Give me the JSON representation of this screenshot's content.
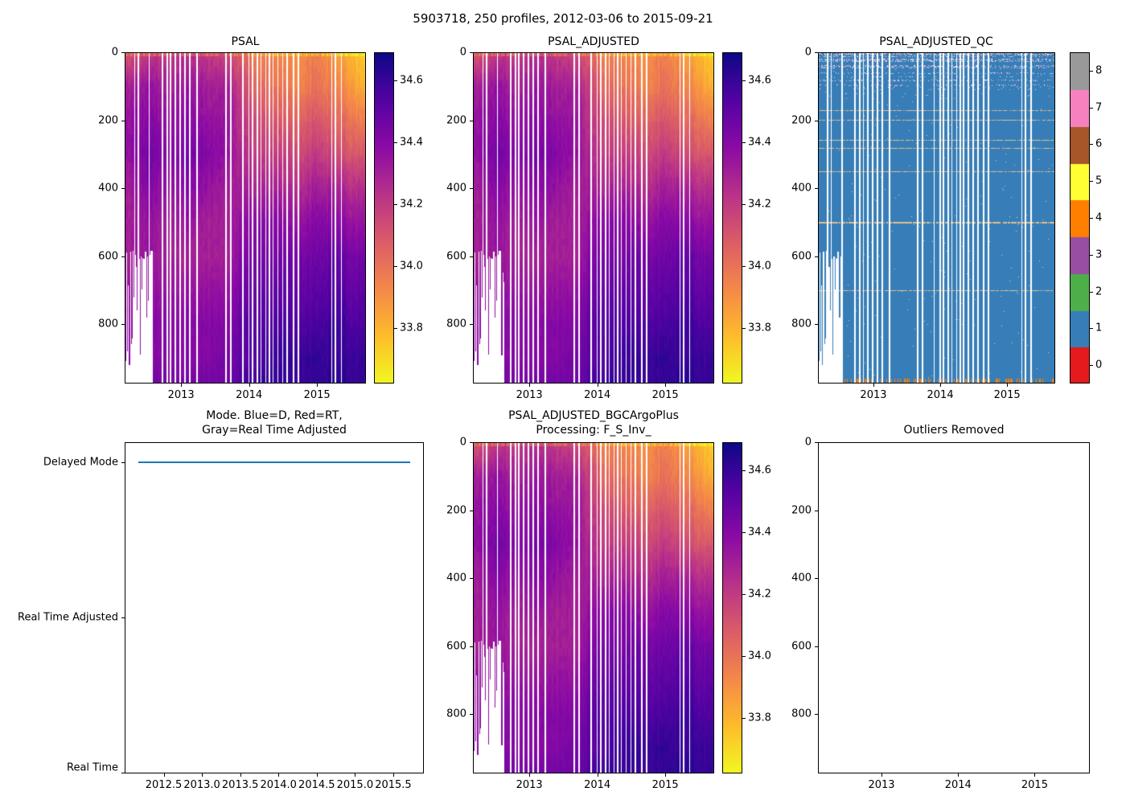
{
  "figure": {
    "title": "5903718, 250 profiles, 2012-03-06 to 2015-09-21"
  },
  "palette": {
    "line_blue": "#1f77b4",
    "qc_background_blue": "#377eb8",
    "qc_colorbar_colors": [
      "#e41a1c",
      "#377eb8",
      "#4daf4a",
      "#984ea3",
      "#ff7f00",
      "#ffff33",
      "#a65628",
      "#f781bf",
      "#999999"
    ],
    "plasma_stops": [
      [
        13,
        8,
        135
      ],
      [
        84,
        2,
        163
      ],
      [
        139,
        10,
        165
      ],
      [
        185,
        50,
        137
      ],
      [
        219,
        92,
        104
      ],
      [
        244,
        136,
        73
      ],
      [
        254,
        188,
        43
      ],
      [
        240,
        249,
        33
      ]
    ]
  },
  "grids": {
    "salinity": {
      "times": [
        2012.2,
        2012.5,
        2012.8,
        2013.1,
        2013.4,
        2013.7,
        2013.9,
        2014.1,
        2014.4,
        2014.7,
        2015.0,
        2015.3,
        2015.5,
        2015.72
      ],
      "depths": [
        0,
        100,
        200,
        300,
        400,
        500,
        600,
        700,
        800,
        900,
        975
      ],
      "values": [
        [
          34.1,
          34.2,
          34.2,
          34.25,
          34.2,
          34.15,
          34.05,
          33.95,
          33.95,
          33.9,
          33.95,
          33.88,
          33.8,
          33.72
        ],
        [
          34.3,
          34.35,
          34.3,
          34.35,
          34.3,
          34.3,
          34.15,
          34.05,
          34.0,
          33.95,
          34.0,
          33.95,
          33.88,
          33.8
        ],
        [
          34.35,
          34.4,
          34.35,
          34.4,
          34.35,
          34.35,
          34.2,
          34.15,
          34.1,
          34.05,
          34.1,
          34.05,
          34.0,
          33.95
        ],
        [
          34.35,
          34.45,
          34.4,
          34.45,
          34.4,
          34.35,
          34.25,
          34.2,
          34.2,
          34.15,
          34.2,
          34.15,
          34.1,
          34.1
        ],
        [
          34.3,
          34.4,
          34.35,
          34.4,
          34.35,
          34.3,
          34.3,
          34.3,
          34.3,
          34.25,
          34.3,
          34.3,
          34.25,
          34.25
        ],
        [
          34.3,
          34.35,
          34.3,
          34.35,
          34.3,
          34.3,
          34.35,
          34.4,
          34.4,
          34.35,
          34.4,
          34.4,
          34.35,
          34.35
        ],
        [
          34.3,
          34.35,
          34.3,
          34.3,
          34.3,
          34.3,
          34.4,
          34.45,
          34.45,
          34.45,
          34.45,
          34.5,
          34.45,
          34.45
        ],
        [
          34.35,
          34.35,
          34.35,
          34.35,
          34.35,
          34.35,
          34.45,
          34.5,
          34.5,
          34.5,
          34.5,
          34.55,
          34.5,
          34.5
        ],
        [
          34.35,
          34.4,
          34.4,
          34.4,
          34.4,
          34.4,
          34.5,
          34.55,
          34.55,
          34.55,
          34.55,
          34.6,
          34.55,
          34.55
        ],
        [
          34.4,
          34.4,
          34.4,
          34.4,
          34.4,
          34.45,
          34.5,
          34.55,
          34.6,
          34.6,
          34.6,
          34.6,
          34.6,
          34.6
        ],
        [
          34.4,
          34.45,
          34.45,
          34.45,
          34.45,
          34.45,
          34.55,
          34.6,
          34.6,
          34.6,
          34.6,
          34.65,
          34.6,
          34.6
        ]
      ]
    }
  },
  "missing_profile_stripes": [
    0.04,
    0.055,
    0.1,
    0.155,
    0.175,
    0.19,
    0.21,
    0.23,
    0.25,
    0.27,
    0.3,
    0.42,
    0.44,
    0.49,
    0.515,
    0.53,
    0.55,
    0.565,
    0.585,
    0.6,
    0.615,
    0.635,
    0.655,
    0.675,
    0.7,
    0.72,
    0.86,
    0.875,
    0.9
  ],
  "chart_data": [
    {
      "id": "psal",
      "type": "heatmap",
      "title": "PSAL",
      "xlabel": "",
      "ylabel": "",
      "x_ticks": [
        "2013",
        "2014",
        "2015"
      ],
      "y_ticks": [
        "0",
        "200",
        "400",
        "600",
        "800"
      ],
      "xlim": [
        2012.17,
        2015.72
      ],
      "ylim": [
        0,
        975
      ],
      "grid_ref": "salinity",
      "colorbar": {
        "colormap": "plasma_r",
        "vmin": 33.62,
        "vmax": 34.69,
        "ticks": [
          "34.6",
          "34.4",
          "34.2",
          "34.0",
          "33.8"
        ]
      }
    },
    {
      "id": "psal_adjusted",
      "type": "heatmap",
      "title": "PSAL_ADJUSTED",
      "xlabel": "",
      "ylabel": "",
      "x_ticks": [
        "2013",
        "2014",
        "2015"
      ],
      "y_ticks": [
        "0",
        "200",
        "400",
        "600",
        "800"
      ],
      "xlim": [
        2012.17,
        2015.72
      ],
      "ylim": [
        0,
        975
      ],
      "grid_ref": "salinity",
      "colorbar": {
        "colormap": "plasma_r",
        "vmin": 33.62,
        "vmax": 34.69,
        "ticks": [
          "34.6",
          "34.4",
          "34.2",
          "34.0",
          "33.8"
        ]
      }
    },
    {
      "id": "psal_adjusted_qc",
      "type": "heatmap",
      "title": "PSAL_ADJUSTED_QC",
      "xlabel": "",
      "ylabel": "",
      "x_ticks": [
        "2013",
        "2014",
        "2015"
      ],
      "y_ticks": [
        "0",
        "200",
        "400",
        "600",
        "800"
      ],
      "xlim": [
        2012.17,
        2015.72
      ],
      "ylim": [
        0,
        975
      ],
      "background_value": 1,
      "bottom_marks_value": 4,
      "surface_speckles": true,
      "colorbar": {
        "discrete": true,
        "ticks": [
          "0",
          "1",
          "2",
          "3",
          "4",
          "5",
          "6",
          "7",
          "8"
        ]
      }
    },
    {
      "id": "mode",
      "type": "line",
      "title_line1": "Mode. Blue=D, Red=RT,",
      "title_line2": "Gray=Real Time Adjusted",
      "y_categories": [
        "Delayed Mode",
        "Real Time Adjusted",
        "Real Time"
      ],
      "x_ticks": [
        "2012.5",
        "2013.0",
        "2013.5",
        "2014.0",
        "2014.5",
        "2015.0",
        "2015.5"
      ],
      "xlim": [
        2011.99,
        2015.9
      ],
      "series": [
        {
          "name": "mode",
          "color": "#1f77b4",
          "value": "Delayed Mode",
          "x_start": 2012.17,
          "x_end": 2015.72
        }
      ]
    },
    {
      "id": "psal_adjusted_bgc",
      "type": "heatmap",
      "title_line1": "PSAL_ADJUSTED_BGCArgoPlus",
      "title_line2": "Processing: F_S_Inv_",
      "xlabel": "",
      "ylabel": "",
      "x_ticks": [
        "2013",
        "2014",
        "2015"
      ],
      "y_ticks": [
        "0",
        "200",
        "400",
        "600",
        "800"
      ],
      "xlim": [
        2012.17,
        2015.72
      ],
      "ylim": [
        0,
        975
      ],
      "grid_ref": "salinity",
      "colorbar": {
        "colormap": "plasma_r",
        "vmin": 33.62,
        "vmax": 34.69,
        "ticks": [
          "34.6",
          "34.4",
          "34.2",
          "34.0",
          "33.8"
        ]
      }
    },
    {
      "id": "outliers",
      "type": "heatmap",
      "title": "Outliers Removed",
      "empty": true,
      "x_ticks": [
        "2013",
        "2014",
        "2015"
      ],
      "y_ticks": [
        "0",
        "200",
        "400",
        "600",
        "800"
      ],
      "xlim": [
        2012.17,
        2015.72
      ],
      "ylim": [
        0,
        975
      ]
    }
  ]
}
